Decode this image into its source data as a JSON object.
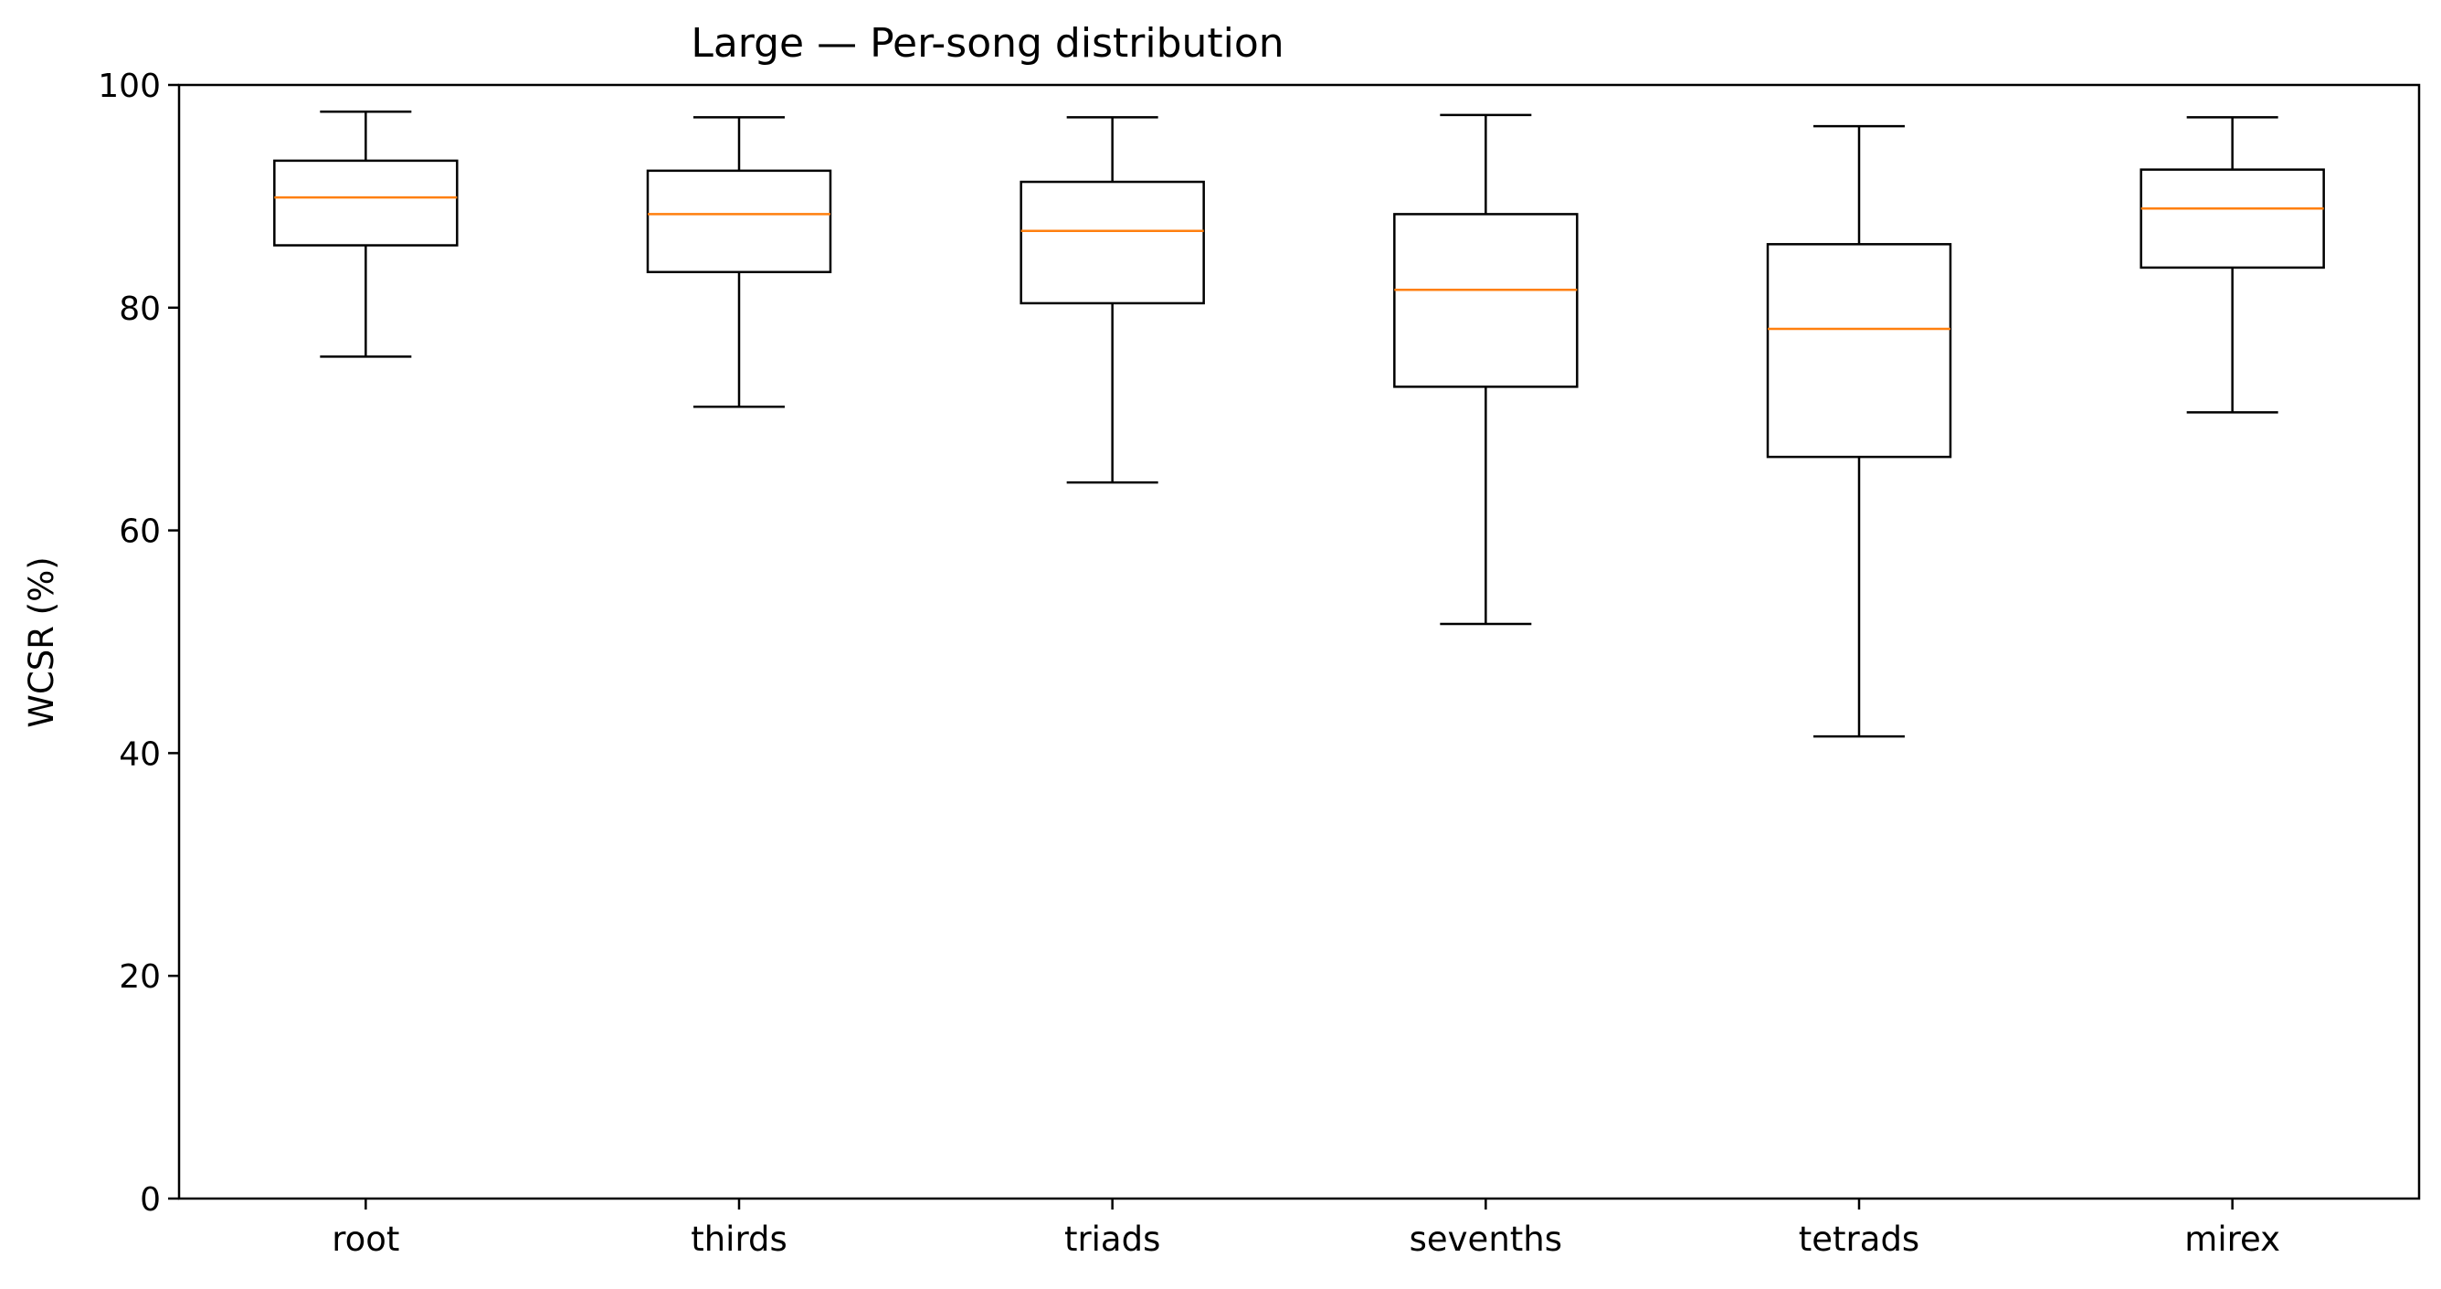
{
  "chart_data": {
    "type": "box",
    "title": "Large — Per-song distribution",
    "xlabel": "",
    "ylabel": "WCSR (%)",
    "ylim": [
      0,
      100
    ],
    "yticks": [
      0,
      20,
      40,
      60,
      80,
      100
    ],
    "grid": false,
    "categories": [
      "root",
      "thirds",
      "triads",
      "sevenths",
      "tetrads",
      "mirex"
    ],
    "boxes": [
      {
        "category": "root",
        "whisker_low": 75.6,
        "q1": 85.6,
        "median": 89.9,
        "q3": 93.2,
        "whisker_high": 97.6
      },
      {
        "category": "thirds",
        "whisker_low": 71.1,
        "q1": 83.2,
        "median": 88.4,
        "q3": 92.3,
        "whisker_high": 97.1
      },
      {
        "category": "triads",
        "whisker_low": 64.3,
        "q1": 80.4,
        "median": 86.9,
        "q3": 91.3,
        "whisker_high": 97.1
      },
      {
        "category": "sevenths",
        "whisker_low": 51.6,
        "q1": 72.9,
        "median": 81.6,
        "q3": 88.4,
        "whisker_high": 97.3
      },
      {
        "category": "tetrads",
        "whisker_low": 41.5,
        "q1": 66.6,
        "median": 78.1,
        "q3": 85.7,
        "whisker_high": 96.3
      },
      {
        "category": "mirex",
        "whisker_low": 70.6,
        "q1": 83.6,
        "median": 88.9,
        "q3": 92.4,
        "whisker_high": 97.1
      }
    ],
    "colors": {
      "box": "#000000",
      "median": "#ff7f0e",
      "whisker": "#000000"
    }
  }
}
